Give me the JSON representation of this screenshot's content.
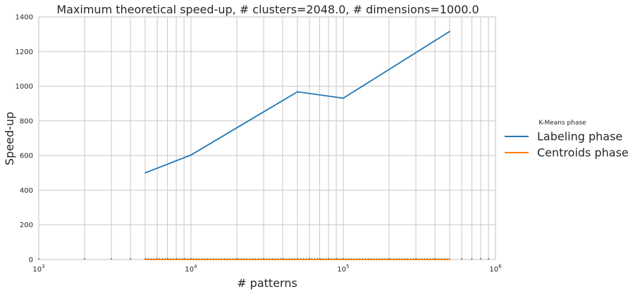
{
  "chart_data": {
    "type": "line",
    "title": "Maximum theoretical speed-up, # clusters=2048.0, # dimensions=1000.0",
    "xlabel": "# patterns",
    "ylabel": "Speed-up",
    "xscale": "log",
    "xlim": [
      1000,
      1000000
    ],
    "ylim": [
      0,
      1400
    ],
    "x_ticks": [
      {
        "base": "10",
        "exp": "3",
        "value": 1000
      },
      {
        "base": "10",
        "exp": "4",
        "value": 10000
      },
      {
        "base": "10",
        "exp": "5",
        "value": 100000
      },
      {
        "base": "10",
        "exp": "6",
        "value": 1000000
      }
    ],
    "y_ticks": [
      "0",
      "200",
      "400",
      "600",
      "800",
      "1000",
      "1200",
      "1400"
    ],
    "grid": true,
    "legend": {
      "title": "K-Means phase",
      "placement": "right, outside"
    },
    "series": [
      {
        "name": "Labeling phase",
        "color": "#1f77b4",
        "x": [
          5000,
          10000,
          50000,
          100000,
          500000
        ],
        "y": [
          500,
          603,
          968,
          931,
          1316
        ]
      },
      {
        "name": "Centroids phase",
        "color": "#ff7f0e",
        "x": [
          5000,
          10000,
          50000,
          100000,
          500000
        ],
        "y": [
          1,
          1,
          1,
          1,
          1
        ]
      }
    ]
  }
}
